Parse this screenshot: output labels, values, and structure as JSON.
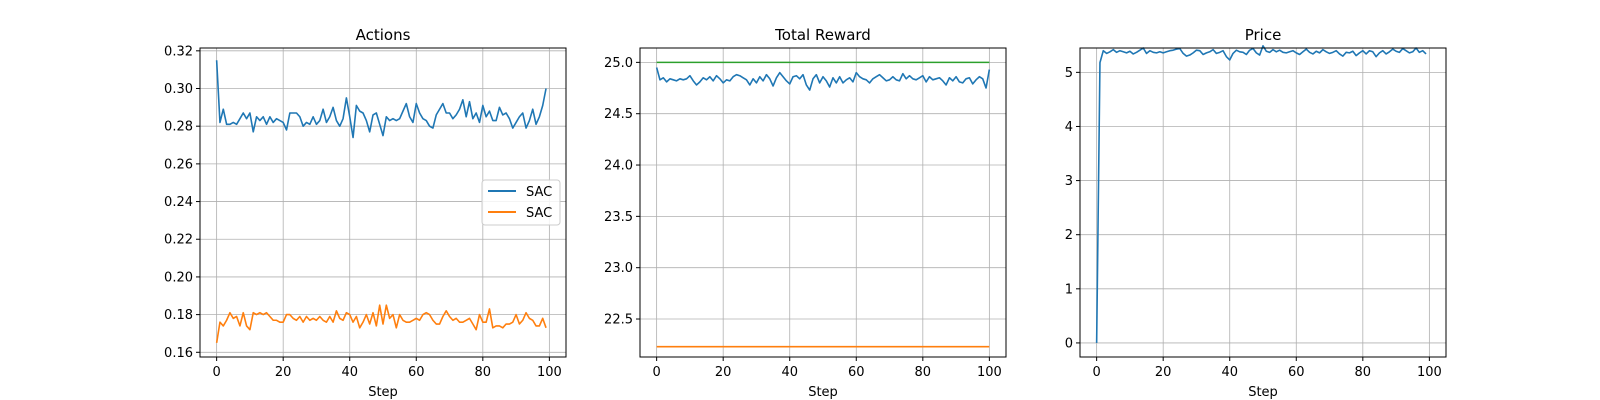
{
  "chart_data": [
    {
      "type": "line",
      "title": "Actions",
      "xlabel": "Step",
      "ylabel": "",
      "xlim": [
        -5,
        105
      ],
      "ylim": [
        0.1575,
        0.3215
      ],
      "xticks": [
        0,
        20,
        40,
        60,
        80,
        100
      ],
      "xtick_labels": [
        "0",
        "20",
        "40",
        "60",
        "80",
        "100"
      ],
      "yticks": [
        0.16,
        0.18,
        0.2,
        0.22,
        0.24,
        0.26,
        0.28,
        0.3,
        0.32
      ],
      "ytick_labels": [
        "0.16",
        "0.18",
        "0.20",
        "0.22",
        "0.24",
        "0.26",
        "0.28",
        "0.30",
        "0.32"
      ],
      "grid": true,
      "legend": {
        "position": "center-right",
        "entries": [
          "SAC",
          "SAC"
        ]
      },
      "series": [
        {
          "name": "SAC",
          "color": "#1f77b4",
          "x_start": 0,
          "x_step": 1,
          "values": [
            0.315,
            0.282,
            0.289,
            0.281,
            0.281,
            0.282,
            0.281,
            0.284,
            0.287,
            0.284,
            0.287,
            0.277,
            0.285,
            0.283,
            0.285,
            0.281,
            0.285,
            0.282,
            0.284,
            0.283,
            0.282,
            0.278,
            0.287,
            0.287,
            0.287,
            0.285,
            0.28,
            0.282,
            0.281,
            0.285,
            0.281,
            0.283,
            0.289,
            0.282,
            0.285,
            0.29,
            0.283,
            0.28,
            0.284,
            0.295,
            0.285,
            0.274,
            0.291,
            0.288,
            0.287,
            0.283,
            0.277,
            0.286,
            0.287,
            0.281,
            0.275,
            0.285,
            0.283,
            0.284,
            0.283,
            0.284,
            0.288,
            0.292,
            0.285,
            0.282,
            0.292,
            0.287,
            0.284,
            0.283,
            0.28,
            0.279,
            0.286,
            0.289,
            0.292,
            0.287,
            0.287,
            0.284,
            0.286,
            0.289,
            0.294,
            0.285,
            0.293,
            0.284,
            0.287,
            0.282,
            0.291,
            0.285,
            0.288,
            0.283,
            0.283,
            0.29,
            0.286,
            0.287,
            0.284,
            0.279,
            0.282,
            0.285,
            0.287,
            0.279,
            0.283,
            0.289,
            0.281,
            0.285,
            0.291,
            0.3
          ]
        },
        {
          "name": "SAC",
          "color": "#ff7f0e",
          "x_start": 0,
          "x_step": 1,
          "values": [
            0.165,
            0.176,
            0.174,
            0.177,
            0.181,
            0.178,
            0.179,
            0.174,
            0.181,
            0.174,
            0.172,
            0.181,
            0.18,
            0.181,
            0.18,
            0.181,
            0.179,
            0.177,
            0.177,
            0.176,
            0.176,
            0.18,
            0.18,
            0.178,
            0.177,
            0.179,
            0.176,
            0.179,
            0.177,
            0.178,
            0.177,
            0.179,
            0.177,
            0.176,
            0.179,
            0.176,
            0.182,
            0.178,
            0.177,
            0.181,
            0.18,
            0.176,
            0.179,
            0.173,
            0.176,
            0.18,
            0.175,
            0.181,
            0.174,
            0.185,
            0.175,
            0.185,
            0.178,
            0.18,
            0.173,
            0.18,
            0.177,
            0.176,
            0.176,
            0.177,
            0.178,
            0.177,
            0.18,
            0.181,
            0.18,
            0.177,
            0.175,
            0.175,
            0.179,
            0.182,
            0.179,
            0.177,
            0.178,
            0.176,
            0.176,
            0.177,
            0.178,
            0.175,
            0.172,
            0.18,
            0.176,
            0.176,
            0.183,
            0.173,
            0.174,
            0.174,
            0.173,
            0.175,
            0.175,
            0.176,
            0.18,
            0.175,
            0.177,
            0.181,
            0.178,
            0.177,
            0.174,
            0.174,
            0.178,
            0.173
          ]
        }
      ]
    },
    {
      "type": "line",
      "title": "Total Reward",
      "xlabel": "Step",
      "ylabel": "",
      "xlim": [
        -5,
        105
      ],
      "ylim": [
        22.13,
        25.14
      ],
      "xticks": [
        0,
        20,
        40,
        60,
        80,
        100
      ],
      "xtick_labels": [
        "0",
        "20",
        "40",
        "60",
        "80",
        "100"
      ],
      "yticks": [
        22.5,
        23.0,
        23.5,
        24.0,
        24.5,
        25.0
      ],
      "ytick_labels": [
        "22.5",
        "23.0",
        "23.5",
        "24.0",
        "24.5",
        "25.0"
      ],
      "grid": true,
      "series": [
        {
          "color": "#1f77b4",
          "x_start": 0,
          "x_step": 1,
          "values": [
            24.95,
            24.83,
            24.85,
            24.81,
            24.84,
            24.83,
            24.82,
            24.84,
            24.83,
            24.84,
            24.87,
            24.82,
            24.78,
            24.81,
            24.85,
            24.83,
            24.86,
            24.82,
            24.87,
            24.84,
            24.8,
            24.83,
            24.82,
            24.86,
            24.88,
            24.87,
            24.85,
            24.83,
            24.78,
            24.84,
            24.8,
            24.86,
            24.82,
            24.88,
            24.84,
            24.77,
            24.85,
            24.9,
            24.86,
            24.82,
            24.79,
            24.86,
            24.87,
            24.84,
            24.88,
            24.78,
            24.73,
            24.84,
            24.88,
            24.8,
            24.86,
            24.82,
            24.76,
            24.85,
            24.8,
            24.86,
            24.8,
            24.83,
            24.85,
            24.81,
            24.9,
            24.86,
            24.84,
            24.83,
            24.8,
            24.84,
            24.86,
            24.88,
            24.85,
            24.82,
            24.83,
            24.86,
            24.83,
            24.82,
            24.89,
            24.84,
            24.87,
            24.84,
            24.83,
            24.85,
            24.87,
            24.81,
            24.86,
            24.83,
            24.84,
            24.85,
            24.82,
            24.78,
            24.85,
            24.82,
            24.86,
            24.81,
            24.8,
            24.84,
            24.85,
            24.79,
            24.83,
            24.86,
            24.84,
            24.75,
            24.93
          ]
        },
        {
          "color": "#ff7f0e",
          "x": [
            0,
            100
          ],
          "values": [
            22.23,
            22.23
          ]
        },
        {
          "color": "#2ca02c",
          "x": [
            0,
            100
          ],
          "values": [
            25.0,
            25.0
          ]
        }
      ]
    },
    {
      "type": "line",
      "title": "Price",
      "xlabel": "Step",
      "ylabel": "",
      "xlim": [
        -5,
        105
      ],
      "ylim": [
        -0.26,
        5.45
      ],
      "xticks": [
        0,
        20,
        40,
        60,
        80,
        100
      ],
      "xtick_labels": [
        "0",
        "20",
        "40",
        "60",
        "80",
        "100"
      ],
      "yticks": [
        0,
        1,
        2,
        3,
        4,
        5
      ],
      "ytick_labels": [
        "0",
        "1",
        "2",
        "3",
        "4",
        "5"
      ],
      "grid": true,
      "series": [
        {
          "color": "#1f77b4",
          "x_start": 0,
          "x_step": 1,
          "values": [
            0.0,
            5.18,
            5.4,
            5.35,
            5.38,
            5.42,
            5.37,
            5.4,
            5.38,
            5.36,
            5.39,
            5.34,
            5.37,
            5.41,
            5.45,
            5.35,
            5.4,
            5.37,
            5.36,
            5.38,
            5.36,
            5.38,
            5.4,
            5.41,
            5.43,
            5.44,
            5.35,
            5.3,
            5.32,
            5.36,
            5.41,
            5.4,
            5.33,
            5.36,
            5.38,
            5.42,
            5.35,
            5.37,
            5.4,
            5.29,
            5.23,
            5.35,
            5.41,
            5.38,
            5.37,
            5.33,
            5.41,
            5.44,
            5.36,
            5.32,
            5.49,
            5.39,
            5.37,
            5.42,
            5.38,
            5.41,
            5.37,
            5.36,
            5.38,
            5.4,
            5.36,
            5.33,
            5.38,
            5.43,
            5.37,
            5.34,
            5.39,
            5.36,
            5.42,
            5.38,
            5.35,
            5.37,
            5.4,
            5.34,
            5.3,
            5.37,
            5.36,
            5.39,
            5.31,
            5.36,
            5.4,
            5.34,
            5.4,
            5.38,
            5.29,
            5.36,
            5.4,
            5.34,
            5.38,
            5.43,
            5.39,
            5.37,
            5.44,
            5.4,
            5.36,
            5.38,
            5.45,
            5.37,
            5.4,
            5.34
          ]
        }
      ]
    }
  ]
}
